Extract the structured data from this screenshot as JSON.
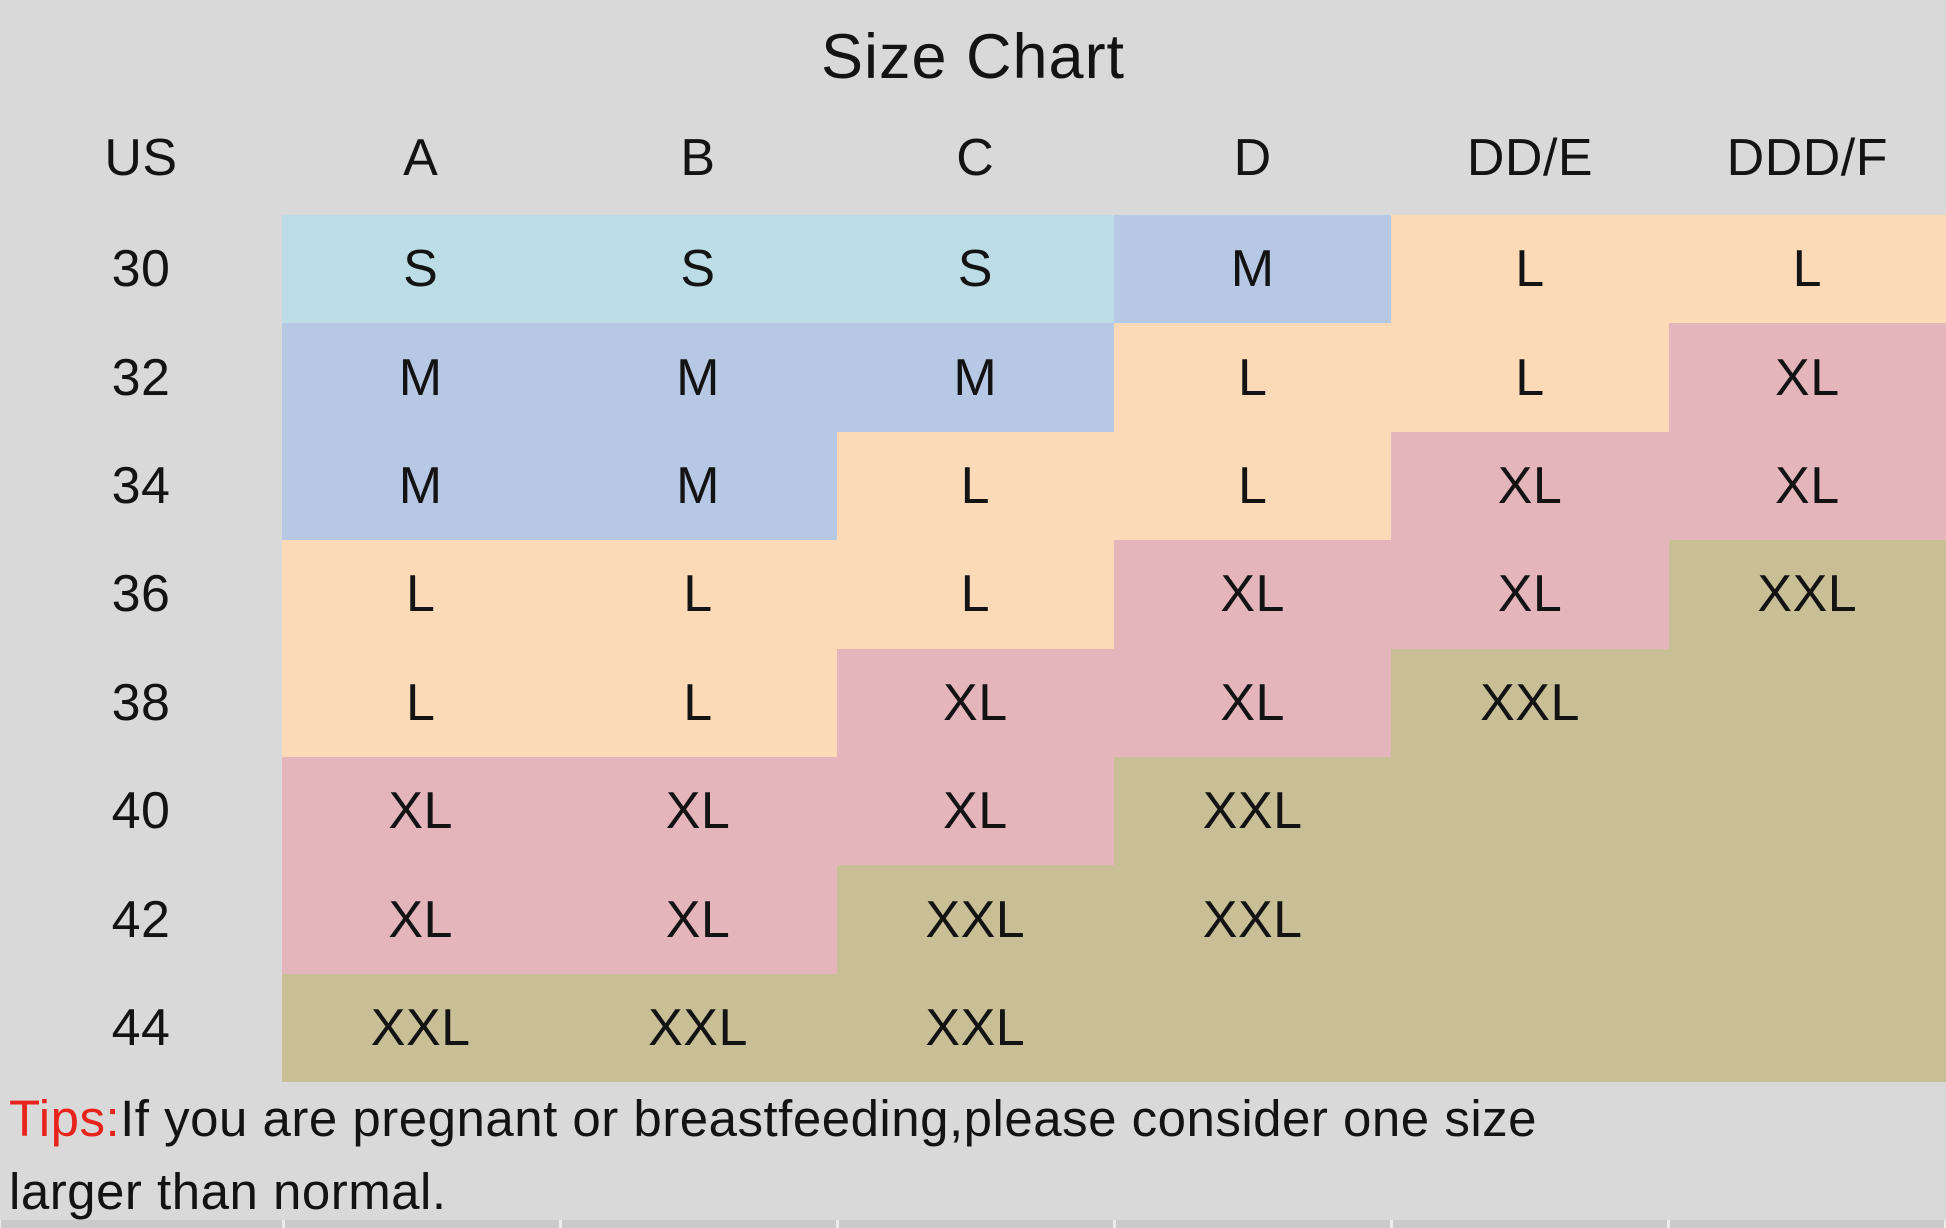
{
  "title": "Size Chart",
  "colors": {
    "background": "#d9d9d9",
    "text": "#131313",
    "tips_red": "#e7231b",
    "bottom_strip": "#cacaca",
    "fills": {
      "none": "transparent",
      "S": "#bddde6",
      "M": "#b6c8e3",
      "L": "#fcdab8",
      "XL": "#e4b6bc",
      "XXL": "#c8bf97"
    }
  },
  "table": {
    "header": [
      "US",
      "A",
      "B",
      "C",
      "D",
      "DD/E",
      "DDD/F"
    ],
    "rows": [
      {
        "cells": [
          {
            "label": "30",
            "fill": "none"
          },
          {
            "label": "S",
            "fill": "S"
          },
          {
            "label": "S",
            "fill": "S"
          },
          {
            "label": "S",
            "fill": "S"
          },
          {
            "label": "M",
            "fill": "M"
          },
          {
            "label": "L",
            "fill": "L"
          },
          {
            "label": "L",
            "fill": "L"
          }
        ]
      },
      {
        "cells": [
          {
            "label": "32",
            "fill": "none"
          },
          {
            "label": "M",
            "fill": "M"
          },
          {
            "label": "M",
            "fill": "M"
          },
          {
            "label": "M",
            "fill": "M"
          },
          {
            "label": "L",
            "fill": "L"
          },
          {
            "label": "L",
            "fill": "L"
          },
          {
            "label": "XL",
            "fill": "XL"
          }
        ]
      },
      {
        "cells": [
          {
            "label": "34",
            "fill": "none"
          },
          {
            "label": "M",
            "fill": "M"
          },
          {
            "label": "M",
            "fill": "M"
          },
          {
            "label": "L",
            "fill": "L"
          },
          {
            "label": "L",
            "fill": "L"
          },
          {
            "label": "XL",
            "fill": "XL"
          },
          {
            "label": "XL",
            "fill": "XL"
          }
        ]
      },
      {
        "cells": [
          {
            "label": "36",
            "fill": "none"
          },
          {
            "label": "L",
            "fill": "L"
          },
          {
            "label": "L",
            "fill": "L"
          },
          {
            "label": "L",
            "fill": "L"
          },
          {
            "label": "XL",
            "fill": "XL"
          },
          {
            "label": "XL",
            "fill": "XL"
          },
          {
            "label": "XXL",
            "fill": "XXL"
          }
        ]
      },
      {
        "cells": [
          {
            "label": "38",
            "fill": "none"
          },
          {
            "label": "L",
            "fill": "L"
          },
          {
            "label": "L",
            "fill": "L"
          },
          {
            "label": "XL",
            "fill": "XL"
          },
          {
            "label": "XL",
            "fill": "XL"
          },
          {
            "label": "XXL",
            "fill": "XXL"
          },
          {
            "label": "",
            "fill": "XXL"
          }
        ]
      },
      {
        "cells": [
          {
            "label": "40",
            "fill": "none"
          },
          {
            "label": "XL",
            "fill": "XL"
          },
          {
            "label": "XL",
            "fill": "XL"
          },
          {
            "label": "XL",
            "fill": "XL"
          },
          {
            "label": "XXL",
            "fill": "XXL"
          },
          {
            "label": "",
            "fill": "XXL"
          },
          {
            "label": "",
            "fill": "XXL"
          }
        ]
      },
      {
        "cells": [
          {
            "label": "42",
            "fill": "none"
          },
          {
            "label": "XL",
            "fill": "XL"
          },
          {
            "label": "XL",
            "fill": "XL"
          },
          {
            "label": "XXL",
            "fill": "XXL"
          },
          {
            "label": "XXL",
            "fill": "XXL"
          },
          {
            "label": "",
            "fill": "XXL"
          },
          {
            "label": "",
            "fill": "XXL"
          }
        ]
      },
      {
        "cells": [
          {
            "label": "44",
            "fill": "none"
          },
          {
            "label": "XXL",
            "fill": "XXL"
          },
          {
            "label": "XXL",
            "fill": "XXL"
          },
          {
            "label": "XXL",
            "fill": "XXL"
          },
          {
            "label": "",
            "fill": "XXL"
          },
          {
            "label": "",
            "fill": "XXL"
          },
          {
            "label": "",
            "fill": "XXL"
          }
        ]
      }
    ]
  },
  "tips": {
    "prefix": "Tips:",
    "line1": "If you are pregnant or breastfeeding,please consider one size",
    "line2": "larger than normal."
  },
  "chart_data": {
    "type": "table",
    "title": "Size Chart",
    "columns": [
      "US",
      "A",
      "B",
      "C",
      "D",
      "DD/E",
      "DDD/F"
    ],
    "rows": [
      [
        "30",
        "S",
        "S",
        "S",
        "M",
        "L",
        "L"
      ],
      [
        "32",
        "M",
        "M",
        "M",
        "L",
        "L",
        "XL"
      ],
      [
        "34",
        "M",
        "M",
        "L",
        "L",
        "XL",
        "XL"
      ],
      [
        "36",
        "L",
        "L",
        "L",
        "XL",
        "XL",
        "XXL"
      ],
      [
        "38",
        "L",
        "L",
        "XL",
        "XL",
        "XXL",
        ""
      ],
      [
        "40",
        "XL",
        "XL",
        "XL",
        "XXL",
        "",
        ""
      ],
      [
        "42",
        "XL",
        "XL",
        "XXL",
        "XXL",
        "",
        ""
      ],
      [
        "44",
        "XXL",
        "XXL",
        "XXL",
        "",
        "",
        ""
      ]
    ],
    "cell_color_legend": {
      "S": "#bddde6 light blue",
      "M": "#b6c8e3 steel blue",
      "L": "#fcdab8 peach",
      "XL": "#e4b6bc pink",
      "XXL": "#c8bf97 olive"
    },
    "annotations": "Tips:If you are pregnant or breastfeeding,please consider one size larger than normal."
  }
}
